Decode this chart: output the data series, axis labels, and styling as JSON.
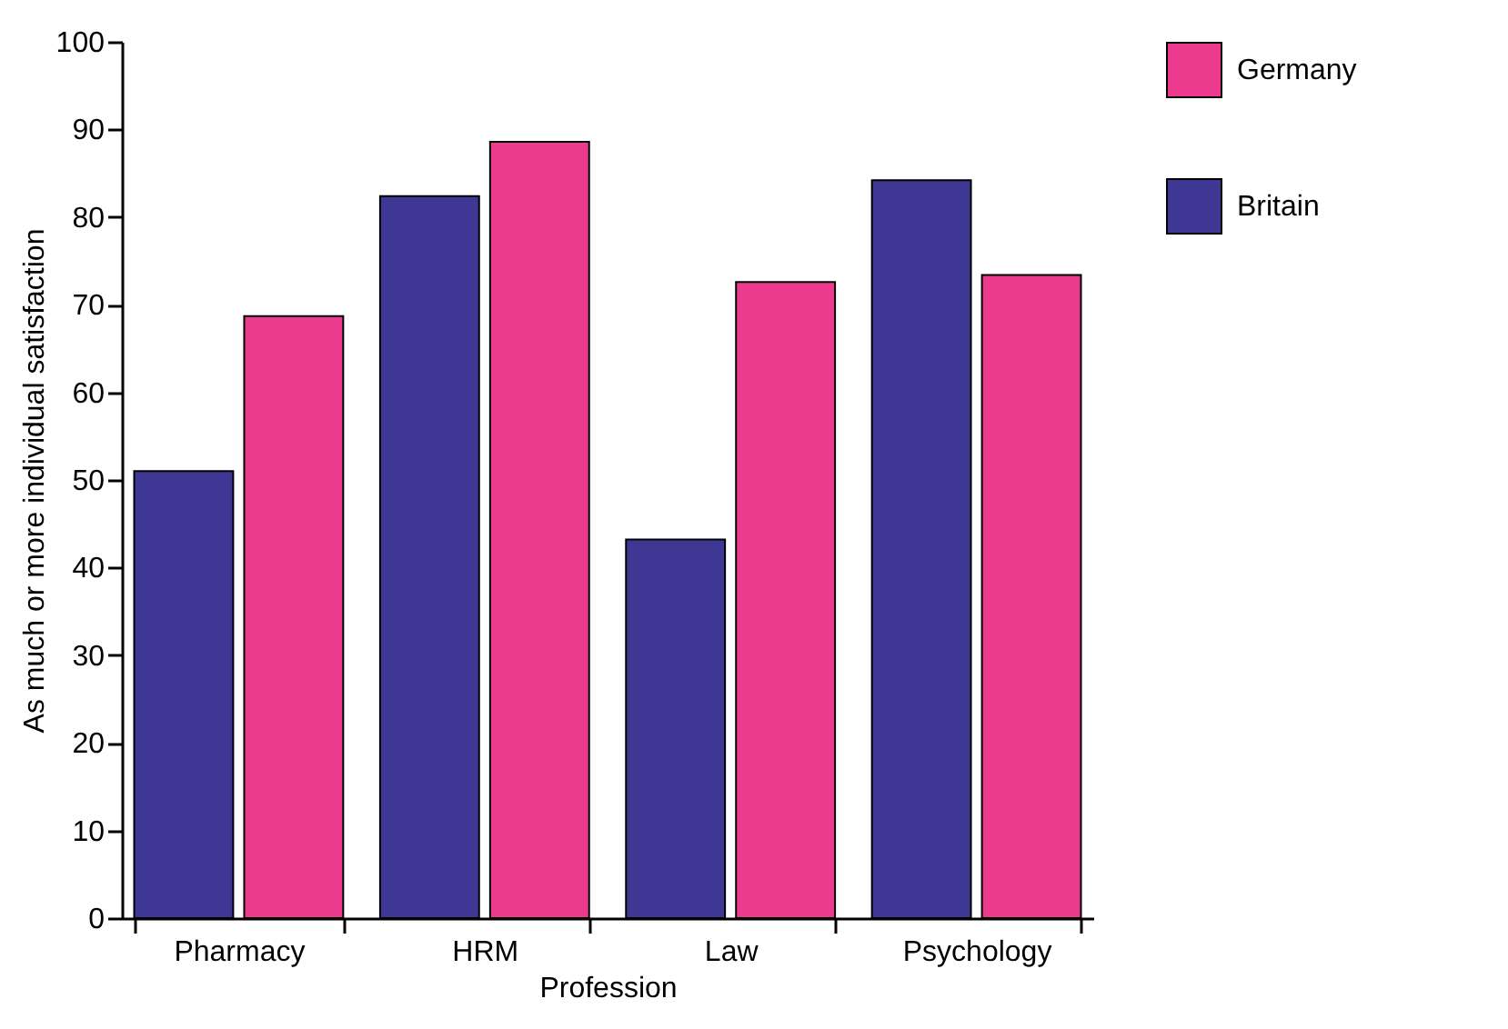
{
  "chart_data": {
    "type": "bar",
    "xlabel": "Profession",
    "ylabel": "As much or more individual satisfaction",
    "categories": [
      "Pharmacy",
      "HRM",
      "Law",
      "Psychology"
    ],
    "series": [
      {
        "name": "Britain",
        "color": "#3f3794",
        "values": [
          51,
          82.4,
          43.2,
          84.2
        ]
      },
      {
        "name": "Germany",
        "color": "#ec3a8e",
        "values": [
          68.7,
          88.6,
          72.6,
          73.4
        ]
      }
    ],
    "ylim": [
      0,
      100
    ],
    "yticks": [
      0,
      10,
      20,
      30,
      40,
      50,
      60,
      70,
      80,
      90,
      100
    ],
    "grid": false,
    "legend": "top right"
  }
}
